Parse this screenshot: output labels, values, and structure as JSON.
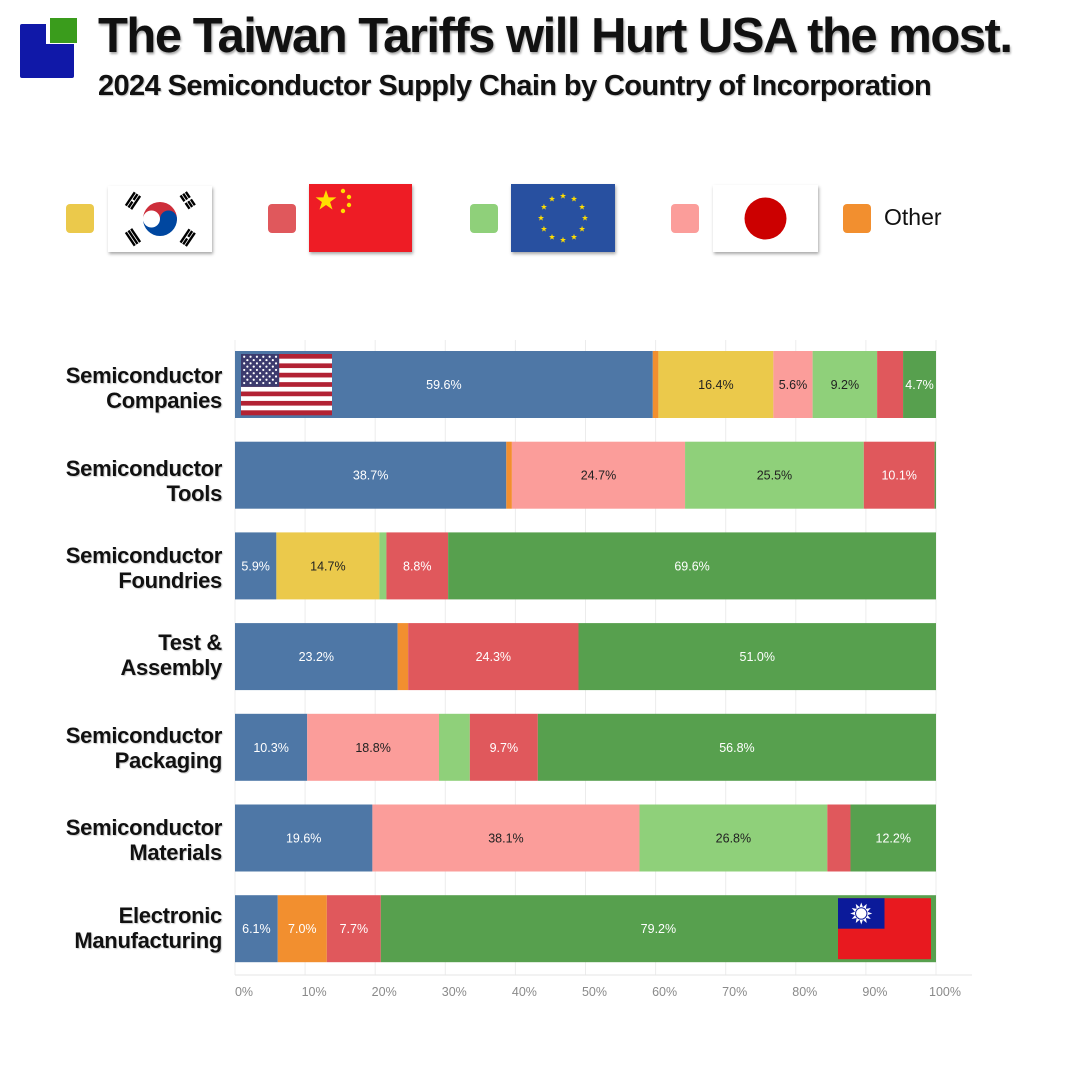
{
  "header": {
    "title": "The Taiwan Tariffs will Hurt USA the most.",
    "subtitle": "2024 Semiconductor Supply Chain by Country of Incorporation"
  },
  "legend": {
    "items": [
      {
        "key": "korea",
        "color": "#ebc94b",
        "icon": "south-korea-flag-icon"
      },
      {
        "key": "china",
        "color": "#e0585c",
        "icon": "china-flag-icon"
      },
      {
        "key": "eu",
        "color": "#8fd07a",
        "icon": "eu-flag-icon"
      },
      {
        "key": "japan",
        "color": "#fb9d9a",
        "icon": "japan-flag-icon"
      },
      {
        "key": "other",
        "color": "#f28f2f",
        "label": "Other"
      }
    ]
  },
  "colors": {
    "usa": "#4e77a6",
    "other": "#f28f2f",
    "korea": "#ebc94b",
    "japan": "#fb9d9a",
    "eu": "#8fd07a",
    "china": "#e0585c",
    "taiwan": "#57a04e"
  },
  "chart_data": {
    "type": "bar",
    "orientation": "horizontal",
    "stacked": true,
    "segment_order": [
      "usa",
      "other",
      "korea",
      "japan",
      "eu",
      "china",
      "taiwan"
    ],
    "segment_icons": {
      "usa": "usa-flag-icon",
      "taiwan": "taiwan-flag-icon"
    },
    "categories": [
      {
        "lines": [
          "Semiconductor",
          "Companies"
        ]
      },
      {
        "lines": [
          "Semiconductor",
          "Tools"
        ]
      },
      {
        "lines": [
          "Semiconductor",
          "Foundries"
        ]
      },
      {
        "lines": [
          "Test &",
          "Assembly"
        ]
      },
      {
        "lines": [
          "Semiconductor",
          "Packaging"
        ]
      },
      {
        "lines": [
          "Semiconductor",
          "Materials"
        ]
      },
      {
        "lines": [
          "Electronic",
          "Manufacturing"
        ]
      }
    ],
    "values": [
      {
        "usa": 59.6,
        "other": 0.8,
        "korea": 16.4,
        "japan": 5.6,
        "eu": 9.2,
        "china": 3.7,
        "taiwan": 4.7
      },
      {
        "usa": 38.7,
        "other": 0.8,
        "korea": 0.0,
        "japan": 24.7,
        "eu": 25.5,
        "china": 10.1,
        "taiwan": 0.2
      },
      {
        "usa": 5.9,
        "other": 0.0,
        "korea": 14.7,
        "japan": 0.0,
        "eu": 1.0,
        "china": 8.8,
        "taiwan": 69.6
      },
      {
        "usa": 23.2,
        "other": 1.5,
        "korea": 0.0,
        "japan": 0.0,
        "eu": 0.0,
        "china": 24.3,
        "taiwan": 51.0
      },
      {
        "usa": 10.3,
        "other": 0.0,
        "korea": 0.0,
        "japan": 18.8,
        "eu": 4.4,
        "china": 9.7,
        "taiwan": 56.8
      },
      {
        "usa": 19.6,
        "other": 0.0,
        "korea": 0.0,
        "japan": 38.1,
        "eu": 26.8,
        "china": 3.3,
        "taiwan": 12.2
      },
      {
        "usa": 6.1,
        "other": 7.0,
        "korea": 0.0,
        "japan": 0.0,
        "eu": 0.0,
        "china": 7.7,
        "taiwan": 79.2
      }
    ],
    "data_labels": [
      {
        "usa": "59.6%",
        "korea": "16.4%",
        "japan": "5.6%",
        "eu": "9.2%",
        "taiwan": "4.7%"
      },
      {
        "usa": "38.7%",
        "japan": "24.7%",
        "eu": "25.5%",
        "china": "10.1%"
      },
      {
        "usa": "5.9%",
        "korea": "14.7%",
        "china": "8.8%",
        "taiwan": "69.6%"
      },
      {
        "usa": "23.2%",
        "china": "24.3%",
        "taiwan": "51.0%"
      },
      {
        "usa": "10.3%",
        "japan": "18.8%",
        "china": "9.7%",
        "taiwan": "56.8%"
      },
      {
        "usa": "19.6%",
        "japan": "38.1%",
        "eu": "26.8%",
        "taiwan": "12.2%"
      },
      {
        "usa": "6.1%",
        "other": "7.0%",
        "china": "7.7%",
        "taiwan": "79.2%"
      }
    ],
    "xlim": [
      0,
      100
    ],
    "x_ticks": [
      "0%",
      "10%",
      "20%",
      "30%",
      "40%",
      "50%",
      "60%",
      "70%",
      "80%",
      "90%",
      "100%"
    ],
    "grid": true
  }
}
